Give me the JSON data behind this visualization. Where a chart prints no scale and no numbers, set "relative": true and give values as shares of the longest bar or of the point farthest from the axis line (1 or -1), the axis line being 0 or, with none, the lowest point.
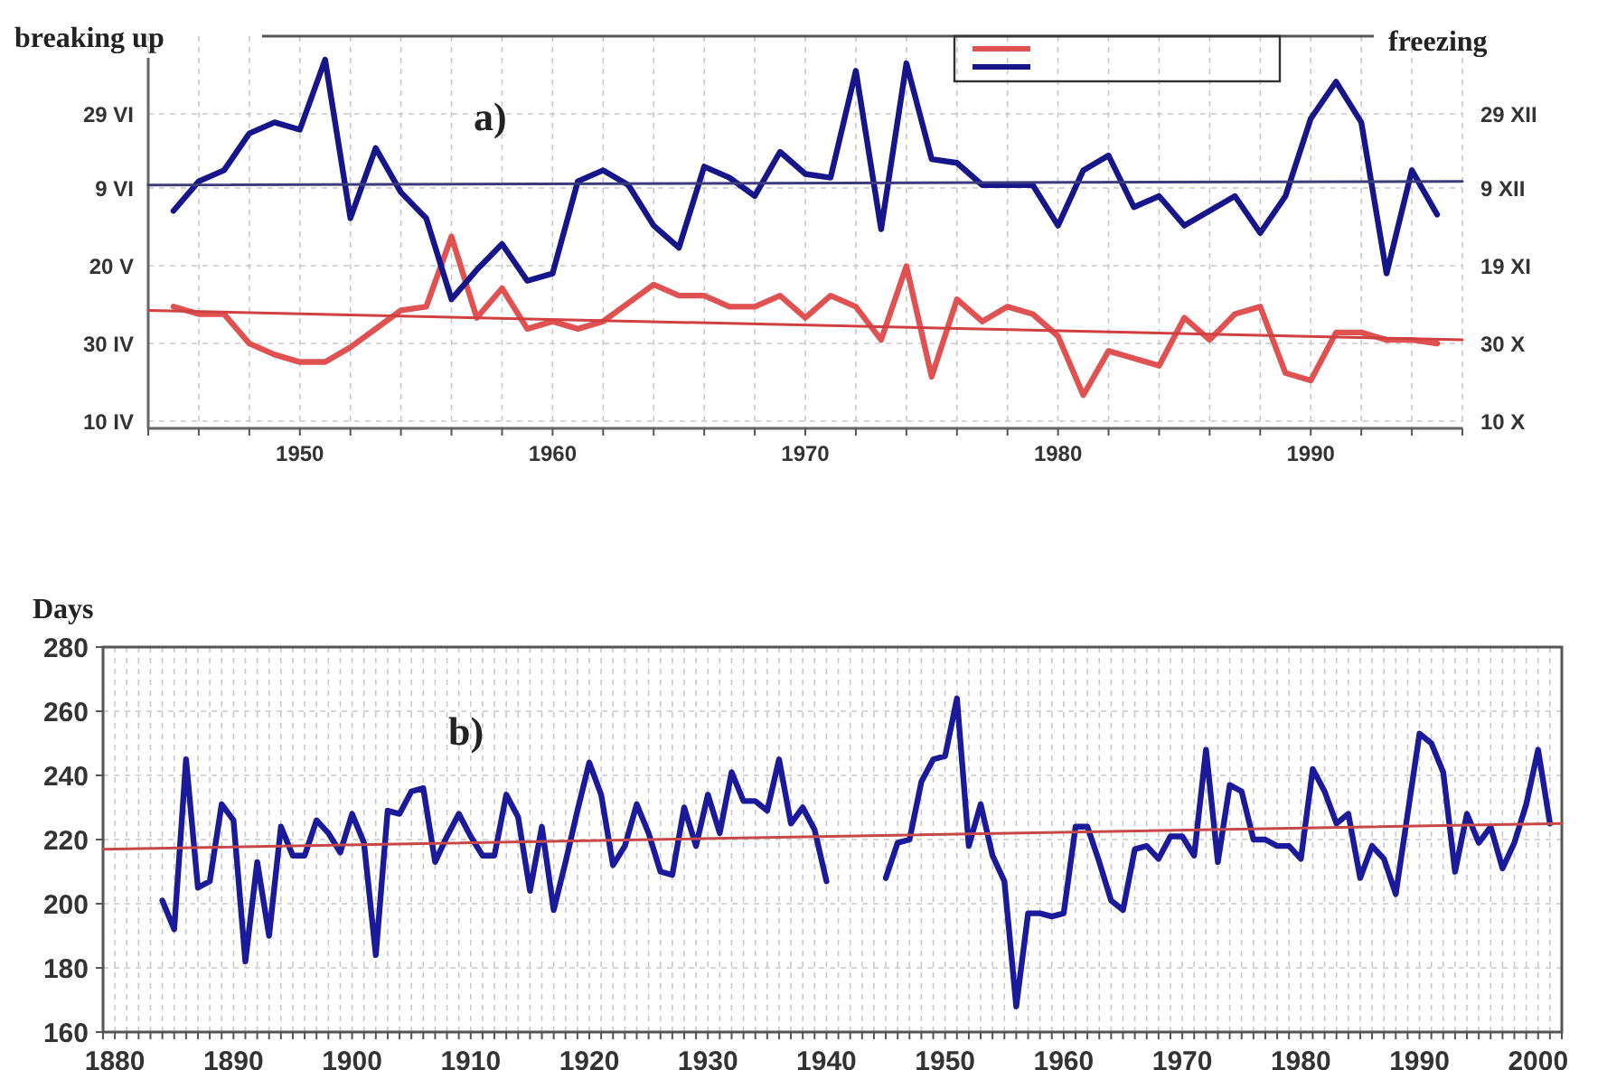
{
  "chart_data": [
    {
      "type": "line",
      "ylabel": "breaking up",
      "y2label": "freezing",
      "relative": true,
      "annotations": [
        "a)",
        "10 IV",
        "30 IV",
        "20 V",
        "9 VI",
        "29 VI",
        "10 X",
        "30 X",
        "19 XI",
        "9 XII",
        "29 XII"
      ],
      "x": [
        1945,
        1946,
        1947,
        1948,
        1949,
        1950,
        1951,
        1952,
        1953,
        1954,
        1955,
        1956,
        1957,
        1958,
        1959,
        1960,
        1961,
        1962,
        1963,
        1964,
        1965,
        1966,
        1967,
        1968,
        1969,
        1970,
        1971,
        1972,
        1973,
        1974,
        1975,
        1976,
        1977,
        1978,
        1979,
        1980,
        1981,
        1982,
        1983,
        1984,
        1985,
        1986,
        1987,
        1988,
        1989,
        1990,
        1991,
        1992,
        1993,
        1994,
        1995
      ],
      "series": [
        {
          "color": "#e05252",
          "values": [
            0.33,
            0.31,
            0.31,
            0.23,
            0.2,
            0.18,
            0.18,
            0.22,
            0.27,
            0.32,
            0.33,
            0.52,
            0.3,
            0.38,
            0.27,
            0.29,
            0.27,
            0.29,
            0.34,
            0.39,
            0.36,
            0.36,
            0.33,
            0.33,
            0.36,
            0.3,
            0.36,
            0.33,
            0.24,
            0.44,
            0.14,
            0.35,
            0.29,
            0.33,
            0.31,
            0.25,
            0.09,
            0.21,
            0.19,
            0.17,
            0.3,
            0.24,
            0.31,
            0.33,
            0.15,
            0.13,
            0.26,
            0.26,
            0.24,
            0.24,
            0.23
          ]
        },
        {
          "color": "#16168a",
          "values": [
            0.59,
            0.67,
            0.7,
            0.8,
            0.83,
            0.81,
            1,
            0.57,
            0.76,
            0.64,
            0.57,
            0.35,
            0.43,
            0.5,
            0.4,
            0.42,
            0.67,
            0.7,
            0.66,
            0.55,
            0.49,
            0.71,
            0.68,
            0.63,
            0.75,
            0.69,
            0.68,
            0.97,
            0.54,
            0.99,
            0.73,
            0.72,
            0.66,
            0.66,
            0.66,
            0.55,
            0.7,
            0.74,
            0.6,
            0.63,
            0.55,
            0.59,
            0.63,
            0.53,
            0.63,
            0.84,
            0.94,
            0.83,
            0.42,
            0.7,
            0.58
          ]
        },
        {
          "color": "#d04040",
          "x": [
            1944,
            1996
          ],
          "values": [
            0.32,
            0.24
          ]
        },
        {
          "color": "#3c3c7c",
          "x": [
            1944,
            1996
          ],
          "values": [
            0.66,
            0.67
          ]
        }
      ],
      "xlim": [
        1944,
        1996
      ],
      "xticks": [
        {
          "value": 1944,
          "label": null
        },
        {
          "value": 1946,
          "label": null
        },
        {
          "value": 1948,
          "label": null
        },
        1950,
        {
          "value": 1952,
          "label": null
        },
        {
          "value": 1954,
          "label": null
        },
        {
          "value": 1956,
          "label": null
        },
        {
          "value": 1958,
          "label": null
        },
        1960,
        {
          "value": 1962,
          "label": null
        },
        {
          "value": 1964,
          "label": null
        },
        {
          "value": 1966,
          "label": null
        },
        {
          "value": 1968,
          "label": null
        },
        1970,
        {
          "value": 1972,
          "label": null
        },
        {
          "value": 1974,
          "label": null
        },
        {
          "value": 1976,
          "label": null
        },
        {
          "value": 1978,
          "label": null
        },
        1980,
        {
          "value": 1982,
          "label": null
        },
        {
          "value": 1984,
          "label": null
        },
        {
          "value": 1986,
          "label": null
        },
        {
          "value": 1988,
          "label": null
        },
        1990,
        {
          "value": 1992,
          "label": null
        },
        {
          "value": 1994,
          "label": null
        },
        {
          "value": 1996,
          "label": null
        }
      ],
      "grid": true
    },
    {
      "type": "line",
      "ylabel": "Days",
      "annotations": [
        "b)"
      ],
      "x": [
        1884,
        1885,
        1886,
        1887,
        1888,
        1889,
        1890,
        1891,
        1892,
        1893,
        1894,
        1895,
        1896,
        1897,
        1898,
        1899,
        1900,
        1901,
        1902,
        1903,
        1904,
        1905,
        1906,
        1907,
        1908,
        1909,
        1910,
        1911,
        1912,
        1913,
        1914,
        1915,
        1916,
        1917,
        1918,
        1919,
        1920,
        1921,
        1922,
        1923,
        1924,
        1925,
        1926,
        1927,
        1928,
        1929,
        1930,
        1931,
        1932,
        1933,
        1934,
        1935,
        1936,
        1937,
        1938,
        1939,
        1940,
        1941,
        1942,
        1943,
        1944,
        1945,
        1946,
        1947,
        1948,
        1949,
        1950,
        1951,
        1952,
        1953,
        1954,
        1955,
        1956,
        1957,
        1958,
        1959,
        1960,
        1961,
        1962,
        1963,
        1964,
        1965,
        1966,
        1967,
        1968,
        1969,
        1970,
        1971,
        1972,
        1973,
        1974,
        1975,
        1976,
        1977,
        1978,
        1979,
        1980,
        1981,
        1982,
        1983,
        1984,
        1985,
        1986,
        1987,
        1988,
        1989,
        1990,
        1991,
        1992,
        1993,
        1994,
        1995,
        1996,
        1997,
        1998,
        1999,
        2000,
        2001
      ],
      "series": [
        {
          "color": "#1a1a9a",
          "values": [
            201,
            192,
            245,
            205,
            207,
            231,
            226,
            182,
            213,
            190,
            224,
            215,
            215,
            226,
            222,
            216,
            228,
            219,
            184,
            229,
            228,
            235,
            236,
            213,
            221,
            228,
            221,
            215,
            215,
            234,
            227,
            204,
            224,
            198,
            213,
            229,
            244,
            234,
            212,
            218,
            231,
            222,
            210,
            209,
            230,
            218,
            234,
            222,
            241,
            232,
            232,
            229,
            245,
            225,
            230,
            223,
            207,
            null,
            null,
            null,
            null,
            208,
            219,
            220,
            238,
            245,
            246,
            264,
            218,
            231,
            215,
            207,
            168,
            197,
            197,
            196,
            197,
            224,
            224,
            213,
            201,
            198,
            217,
            218,
            214,
            221,
            221,
            215,
            248,
            213,
            237,
            235,
            220,
            220,
            218,
            218,
            214,
            242,
            235,
            225,
            228,
            208,
            218,
            214,
            203,
            228,
            253,
            250,
            241,
            210,
            228,
            219,
            224,
            211,
            219,
            231,
            248,
            225
          ]
        },
        {
          "color": "#c84848",
          "x": [
            1879,
            2002
          ],
          "values": [
            217,
            225
          ]
        }
      ],
      "xlim": [
        1879,
        2002
      ],
      "ylim": [
        160,
        280
      ],
      "yticks": [
        160,
        180,
        200,
        220,
        240,
        260,
        280
      ],
      "xticks": [
        {
          "value": 1879,
          "label": null
        },
        1880,
        {
          "value": 1881,
          "label": null
        },
        {
          "value": 1882,
          "label": null
        },
        {
          "value": 1883,
          "label": null
        },
        {
          "value": 1884,
          "label": null
        },
        {
          "value": 1885,
          "label": null
        },
        {
          "value": 1886,
          "label": null
        },
        {
          "value": 1887,
          "label": null
        },
        {
          "value": 1888,
          "label": null
        },
        {
          "value": 1889,
          "label": null
        },
        1890,
        {
          "value": 1891,
          "label": null
        },
        {
          "value": 1892,
          "label": null
        },
        {
          "value": 1893,
          "label": null
        },
        {
          "value": 1894,
          "label": null
        },
        {
          "value": 1895,
          "label": null
        },
        {
          "value": 1896,
          "label": null
        },
        {
          "value": 1897,
          "label": null
        },
        {
          "value": 1898,
          "label": null
        },
        {
          "value": 1899,
          "label": null
        },
        1900,
        {
          "value": 1901,
          "label": null
        },
        {
          "value": 1902,
          "label": null
        },
        {
          "value": 1903,
          "label": null
        },
        {
          "value": 1904,
          "label": null
        },
        {
          "value": 1905,
          "label": null
        },
        {
          "value": 1906,
          "label": null
        },
        {
          "value": 1907,
          "label": null
        },
        {
          "value": 1908,
          "label": null
        },
        {
          "value": 1909,
          "label": null
        },
        1910,
        {
          "value": 1911,
          "label": null
        },
        {
          "value": 1912,
          "label": null
        },
        {
          "value": 1913,
          "label": null
        },
        {
          "value": 1914,
          "label": null
        },
        {
          "value": 1915,
          "label": null
        },
        {
          "value": 1916,
          "label": null
        },
        {
          "value": 1917,
          "label": null
        },
        {
          "value": 1918,
          "label": null
        },
        {
          "value": 1919,
          "label": null
        },
        1920,
        {
          "value": 1921,
          "label": null
        },
        {
          "value": 1922,
          "label": null
        },
        {
          "value": 1923,
          "label": null
        },
        {
          "value": 1924,
          "label": null
        },
        {
          "value": 1925,
          "label": null
        },
        {
          "value": 1926,
          "label": null
        },
        {
          "value": 1927,
          "label": null
        },
        {
          "value": 1928,
          "label": null
        },
        {
          "value": 1929,
          "label": null
        },
        1930,
        {
          "value": 1931,
          "label": null
        },
        {
          "value": 1932,
          "label": null
        },
        {
          "value": 1933,
          "label": null
        },
        {
          "value": 1934,
          "label": null
        },
        {
          "value": 1935,
          "label": null
        },
        {
          "value": 1936,
          "label": null
        },
        {
          "value": 1937,
          "label": null
        },
        {
          "value": 1938,
          "label": null
        },
        {
          "value": 1939,
          "label": null
        },
        1940,
        {
          "value": 1941,
          "label": null
        },
        {
          "value": 1942,
          "label": null
        },
        {
          "value": 1943,
          "label": null
        },
        {
          "value": 1944,
          "label": null
        },
        {
          "value": 1945,
          "label": null
        },
        {
          "value": 1946,
          "label": null
        },
        {
          "value": 1947,
          "label": null
        },
        {
          "value": 1948,
          "label": null
        },
        {
          "value": 1949,
          "label": null
        },
        1950,
        {
          "value": 1951,
          "label": null
        },
        {
          "value": 1952,
          "label": null
        },
        {
          "value": 1953,
          "label": null
        },
        {
          "value": 1954,
          "label": null
        },
        {
          "value": 1955,
          "label": null
        },
        {
          "value": 1956,
          "label": null
        },
        {
          "value": 1957,
          "label": null
        },
        {
          "value": 1958,
          "label": null
        },
        {
          "value": 1959,
          "label": null
        },
        1960,
        {
          "value": 1961,
          "label": null
        },
        {
          "value": 1962,
          "label": null
        },
        {
          "value": 1963,
          "label": null
        },
        {
          "value": 1964,
          "label": null
        },
        {
          "value": 1965,
          "label": null
        },
        {
          "value": 1966,
          "label": null
        },
        {
          "value": 1967,
          "label": null
        },
        {
          "value": 1968,
          "label": null
        },
        {
          "value": 1969,
          "label": null
        },
        1970,
        {
          "value": 1971,
          "label": null
        },
        {
          "value": 1972,
          "label": null
        },
        {
          "value": 1973,
          "label": null
        },
        {
          "value": 1974,
          "label": null
        },
        {
          "value": 1975,
          "label": null
        },
        {
          "value": 1976,
          "label": null
        },
        {
          "value": 1977,
          "label": null
        },
        {
          "value": 1978,
          "label": null
        },
        {
          "value": 1979,
          "label": null
        },
        1980,
        {
          "value": 1981,
          "label": null
        },
        {
          "value": 1982,
          "label": null
        },
        {
          "value": 1983,
          "label": null
        },
        {
          "value": 1984,
          "label": null
        },
        {
          "value": 1985,
          "label": null
        },
        {
          "value": 1986,
          "label": null
        },
        {
          "value": 1987,
          "label": null
        },
        {
          "value": 1988,
          "label": null
        },
        {
          "value": 1989,
          "label": null
        },
        1990,
        {
          "value": 1991,
          "label": null
        },
        {
          "value": 1992,
          "label": null
        },
        {
          "value": 1993,
          "label": null
        },
        {
          "value": 1994,
          "label": null
        },
        {
          "value": 1995,
          "label": null
        },
        {
          "value": 1996,
          "label": null
        },
        {
          "value": 1997,
          "label": null
        },
        {
          "value": 1998,
          "label": null
        },
        {
          "value": 1999,
          "label": null
        },
        2000,
        {
          "value": 2001,
          "label": null
        },
        {
          "value": 2002,
          "label": null
        }
      ],
      "grid": true
    }
  ]
}
